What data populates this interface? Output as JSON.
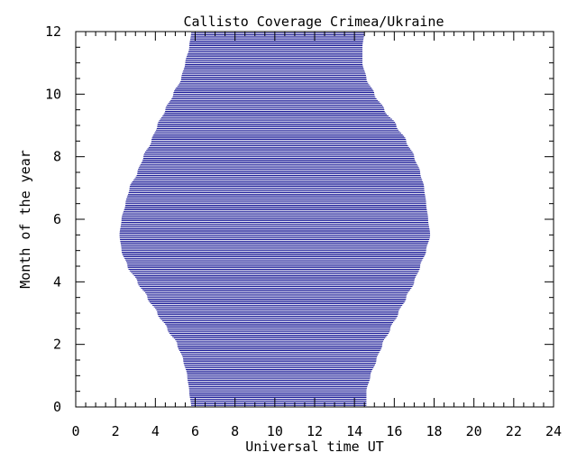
{
  "chart_data": {
    "type": "area",
    "title": "Callisto Coverage Crimea/Ukraine",
    "xlabel": "Universal time UT",
    "ylabel": "Month of the year",
    "xlim": [
      0,
      24
    ],
    "ylim": [
      0,
      12
    ],
    "x_ticks": [
      "0",
      "2",
      "4",
      "6",
      "8",
      "10",
      "12",
      "14",
      "16",
      "18",
      "20",
      "22",
      "24"
    ],
    "y_ticks": [
      "0",
      "2",
      "4",
      "6",
      "8",
      "10",
      "12"
    ],
    "line_color": "#00008b",
    "line_spacing_months": 0.05,
    "coverage": [
      {
        "month": 0.0,
        "start_ut": 5.8,
        "end_ut": 14.6
      },
      {
        "month": 0.5,
        "start_ut": 5.7,
        "end_ut": 14.6
      },
      {
        "month": 1.0,
        "start_ut": 5.6,
        "end_ut": 14.8
      },
      {
        "month": 1.5,
        "start_ut": 5.4,
        "end_ut": 15.1
      },
      {
        "month": 2.0,
        "start_ut": 5.1,
        "end_ut": 15.4
      },
      {
        "month": 2.5,
        "start_ut": 4.6,
        "end_ut": 15.8
      },
      {
        "month": 3.0,
        "start_ut": 4.1,
        "end_ut": 16.2
      },
      {
        "month": 3.5,
        "start_ut": 3.6,
        "end_ut": 16.6
      },
      {
        "month": 4.0,
        "start_ut": 3.1,
        "end_ut": 17.0
      },
      {
        "month": 4.5,
        "start_ut": 2.6,
        "end_ut": 17.3
      },
      {
        "month": 5.0,
        "start_ut": 2.3,
        "end_ut": 17.6
      },
      {
        "month": 5.5,
        "start_ut": 2.2,
        "end_ut": 17.8
      },
      {
        "month": 6.0,
        "start_ut": 2.3,
        "end_ut": 17.7
      },
      {
        "month": 6.5,
        "start_ut": 2.5,
        "end_ut": 17.6
      },
      {
        "month": 7.0,
        "start_ut": 2.7,
        "end_ut": 17.5
      },
      {
        "month": 7.5,
        "start_ut": 3.1,
        "end_ut": 17.3
      },
      {
        "month": 8.0,
        "start_ut": 3.4,
        "end_ut": 17.0
      },
      {
        "month": 8.5,
        "start_ut": 3.8,
        "end_ut": 16.6
      },
      {
        "month": 9.0,
        "start_ut": 4.1,
        "end_ut": 16.1
      },
      {
        "month": 9.5,
        "start_ut": 4.5,
        "end_ut": 15.5
      },
      {
        "month": 10.0,
        "start_ut": 4.9,
        "end_ut": 15.0
      },
      {
        "month": 10.5,
        "start_ut": 5.3,
        "end_ut": 14.6
      },
      {
        "month": 11.0,
        "start_ut": 5.5,
        "end_ut": 14.4
      },
      {
        "month": 11.5,
        "start_ut": 5.7,
        "end_ut": 14.4
      },
      {
        "month": 12.0,
        "start_ut": 5.8,
        "end_ut": 14.5
      }
    ]
  }
}
